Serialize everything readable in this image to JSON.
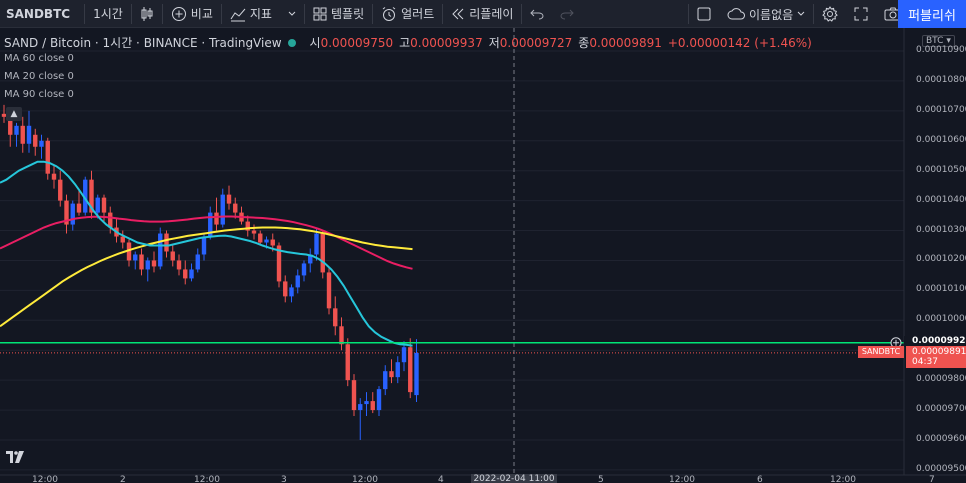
{
  "toolbar": {
    "symbol": "SANDBTC",
    "interval": "1시간",
    "compare": "비교",
    "indicators": "지표",
    "templates": "템플릿",
    "alerts": "얼러트",
    "replay": "리플레이",
    "layout_name": "이름없음",
    "publish": "퍼블리쉬"
  },
  "legend": {
    "title": "SAND / Bitcoin · 1시간 · BINANCE · TradingView",
    "open_label": "시",
    "open": "0.00009750",
    "high_label": "고",
    "high": "0.00009937",
    "low_label": "저",
    "low": "0.00009727",
    "close_label": "종",
    "close": "0.00009891",
    "change": "+0.00000142 (+1.46%)",
    "ma": [
      "MA 60 close 0",
      "MA 20 close 0",
      "MA 90 close 0"
    ]
  },
  "price_scale": {
    "currency": "BTC",
    "ticks": [
      "0.00010900",
      "0.00010800",
      "0.00010700",
      "0.00010600",
      "0.00010500",
      "0.00010400",
      "0.00010300",
      "0.00010200",
      "0.00010100",
      "0.00010000",
      "0.00009900",
      "0.00009800",
      "0.00009700",
      "0.00009600",
      "0.00009500"
    ],
    "horizontal_line_price": "0.00009925",
    "last_price": "0.00009891",
    "last_symbol": "SANDBTC",
    "countdown": "04:37"
  },
  "time_axis": {
    "labels": [
      "12:00",
      "2",
      "12:00",
      "3",
      "12:00",
      "4",
      "5",
      "12:00",
      "6",
      "12:00",
      "7"
    ],
    "cursor_label": "2022-02-04  11:00"
  },
  "colors": {
    "background": "#131722",
    "up": "#2962ff",
    "down": "#ef5350",
    "ma60": "#e91e63",
    "ma20": "#26c6da",
    "ma90": "#ffeb3b",
    "hline": "#00e676",
    "accent": "#2962ff"
  },
  "chart_data": {
    "type": "candlestick",
    "x_unit": "hour",
    "candles_ohlc": [
      [
        0.0001069,
        0.0001072,
        0.0001066,
        0.0001068
      ],
      [
        0.0001068,
        0.000107,
        0.0001058,
        0.0001062
      ],
      [
        0.0001062,
        0.0001066,
        0.0001058,
        0.0001065
      ],
      [
        0.0001065,
        0.0001068,
        0.0001056,
        0.0001059
      ],
      [
        0.0001059,
        0.000107,
        0.0001056,
        0.0001065
      ],
      [
        0.0001062,
        0.0001064,
        0.0001055,
        0.0001058
      ],
      [
        0.0001058,
        0.0001062,
        0.0001054,
        0.000106
      ],
      [
        0.000106,
        0.0001061,
        0.0001047,
        0.0001049
      ],
      [
        0.0001049,
        0.0001052,
        0.0001044,
        0.0001047
      ],
      [
        0.0001047,
        0.000105,
        0.0001038,
        0.000104
      ],
      [
        0.000104,
        0.0001042,
        0.0001029,
        0.0001032
      ],
      [
        0.0001032,
        0.000104,
        0.000103,
        0.0001039
      ],
      [
        0.0001039,
        0.0001044,
        0.0001035,
        0.0001036
      ],
      [
        0.0001036,
        0.0001048,
        0.0001035,
        0.0001047
      ],
      [
        0.0001047,
        0.000105,
        0.0001034,
        0.0001036
      ],
      [
        0.0001036,
        0.0001042,
        0.0001034,
        0.0001041
      ],
      [
        0.0001041,
        0.0001042,
        0.0001033,
        0.0001036
      ],
      [
        0.0001036,
        0.0001038,
        0.0001029,
        0.0001031
      ],
      [
        0.0001031,
        0.0001034,
        0.0001026,
        0.0001028
      ],
      [
        0.0001028,
        0.000103,
        0.0001024,
        0.0001026
      ],
      [
        0.0001026,
        0.0001027,
        0.0001018,
        0.000102
      ],
      [
        0.000102,
        0.0001023,
        0.0001017,
        0.0001022
      ],
      [
        0.0001022,
        0.0001024,
        0.0001015,
        0.0001017
      ],
      [
        0.0001017,
        0.0001021,
        0.0001013,
        0.000102
      ],
      [
        0.000102,
        0.0001023,
        0.0001016,
        0.0001018
      ],
      [
        0.0001018,
        0.0001031,
        0.0001017,
        0.0001029
      ],
      [
        0.0001029,
        0.000103,
        0.0001021,
        0.0001023
      ],
      [
        0.0001023,
        0.0001025,
        0.0001018,
        0.000102
      ],
      [
        0.000102,
        0.0001022,
        0.0001015,
        0.0001017
      ],
      [
        0.0001017,
        0.000102,
        0.0001012,
        0.0001014
      ],
      [
        0.0001014,
        0.0001019,
        0.0001013,
        0.0001017
      ],
      [
        0.0001017,
        0.0001024,
        0.0001016,
        0.0001022
      ],
      [
        0.0001022,
        0.0001029,
        0.000102,
        0.0001028
      ],
      [
        0.0001028,
        0.0001038,
        0.0001027,
        0.0001036
      ],
      [
        0.0001036,
        0.0001041,
        0.000103,
        0.0001032
      ],
      [
        0.0001032,
        0.0001044,
        0.0001031,
        0.0001042
      ],
      [
        0.0001042,
        0.0001045,
        0.0001037,
        0.0001039
      ],
      [
        0.0001039,
        0.0001041,
        0.0001034,
        0.0001036
      ],
      [
        0.0001036,
        0.0001038,
        0.0001032,
        0.0001033
      ],
      [
        0.0001033,
        0.0001035,
        0.0001028,
        0.000103
      ],
      [
        0.000103,
        0.0001032,
        0.0001027,
        0.0001029
      ],
      [
        0.0001029,
        0.000103,
        0.0001025,
        0.0001026
      ],
      [
        0.0001026,
        0.0001028,
        0.0001024,
        0.0001027
      ],
      [
        0.0001027,
        0.0001029,
        0.0001023,
        0.0001025
      ],
      [
        0.0001025,
        0.0001026,
        0.0001011,
        0.0001013
      ],
      [
        0.0001013,
        0.0001015,
        0.0001006,
        0.0001008
      ],
      [
        0.0001008,
        0.0001012,
        0.0001006,
        0.0001011
      ],
      [
        0.0001011,
        0.0001017,
        0.0001009,
        0.0001015
      ],
      [
        0.0001015,
        0.000102,
        0.0001013,
        0.0001019
      ],
      [
        0.0001019,
        0.0001024,
        0.0001016,
        0.0001022
      ],
      [
        0.0001022,
        0.0001031,
        0.000102,
        0.0001029
      ],
      [
        0.0001029,
        0.000103,
        0.0001014,
        0.0001016
      ],
      [
        0.0001016,
        0.0001018,
        0.0001002,
        0.0001004
      ],
      [
        0.0001004,
        0.0001008,
        9.95e-05,
        9.98e-05
      ],
      [
        9.98e-05,
        0.0001001,
        9.9e-05,
        9.92e-05
      ],
      [
        9.92e-05,
        9.94e-05,
        9.78e-05,
        9.8e-05
      ],
      [
        9.8e-05,
        9.82e-05,
        9.68e-05,
        9.7e-05
      ],
      [
        9.7e-05,
        9.74e-05,
        9.6e-05,
        9.72e-05
      ],
      [
        9.72e-05,
        9.76e-05,
        9.68e-05,
        9.73e-05
      ],
      [
        9.73e-05,
        9.76e-05,
        9.69e-05,
        9.7e-05
      ],
      [
        9.7e-05,
        9.78e-05,
        9.68e-05,
        9.77e-05
      ],
      [
        9.77e-05,
        9.85e-05,
        9.75e-05,
        9.83e-05
      ],
      [
        9.83e-05,
        9.87e-05,
        9.79e-05,
        9.81e-05
      ],
      [
        9.81e-05,
        9.88e-05,
        9.79e-05,
        9.86e-05
      ],
      [
        9.86e-05,
        9.93e-05,
        9.83e-05,
        9.91e-05
      ],
      [
        9.91e-05,
        9.94e-05,
        9.74e-05,
        9.76e-05
      ],
      [
        9.75e-05,
        9.937e-05,
        9.727e-05,
        9.891e-05
      ]
    ],
    "ma20": [
      0.0001046,
      0.0001047,
      0.00010485,
      0.000105,
      0.0001051,
      0.0001052,
      0.0001053,
      0.0001053,
      0.00010525,
      0.00010515,
      0.000105,
      0.0001048,
      0.00010455,
      0.00010425,
      0.00010395,
      0.00010365,
      0.0001034,
      0.0001032,
      0.00010305,
      0.0001029,
      0.0001028,
      0.0001027,
      0.0001026,
      0.00010255,
      0.0001025,
      0.0001025,
      0.0001025,
      0.0001025,
      0.00010255,
      0.0001026,
      0.00010265,
      0.0001027,
      0.00010275,
      0.00010278,
      0.0001028,
      0.00010282,
      0.00010283,
      0.0001028,
      0.00010275,
      0.0001027,
      0.00010265,
      0.00010258,
      0.0001025,
      0.00010243,
      0.00010237,
      0.00010232,
      0.00010228,
      0.00010225,
      0.00010222,
      0.0001022,
      0.00010215,
      0.00010205,
      0.0001019,
      0.0001017,
      0.00010145,
      0.00010115,
      0.0001008,
      0.00010045,
      0.0001001,
      9.98e-05,
      9.96e-05,
      9.945e-05,
      9.935e-05,
      9.925e-05,
      9.92e-05,
      9.918e-05,
      9.915e-05
    ],
    "ma60": [
      0.0001024,
      0.0001025,
      0.0001026,
      0.0001027,
      0.0001028,
      0.0001029,
      0.000103,
      0.0001031,
      0.00010318,
      0.00010325,
      0.0001033,
      0.00010335,
      0.0001034,
      0.00010343,
      0.00010345,
      0.00010346,
      0.00010346,
      0.00010345,
      0.00010343,
      0.0001034,
      0.00010338,
      0.00010335,
      0.00010333,
      0.00010331,
      0.0001033,
      0.0001033,
      0.0001033,
      0.00010331,
      0.00010333,
      0.00010335,
      0.00010337,
      0.0001034,
      0.00010342,
      0.00010344,
      0.00010345,
      0.00010346,
      0.00010347,
      0.00010347,
      0.00010346,
      0.00010345,
      0.00010344,
      0.00010343,
      0.00010342,
      0.0001034,
      0.00010338,
      0.00010335,
      0.00010332,
      0.00010328,
      0.00010323,
      0.00010318,
      0.00010312,
      0.00010305,
      0.00010297,
      0.00010288,
      0.00010278,
      0.00010268,
      0.00010258,
      0.00010248,
      0.00010238,
      0.00010228,
      0.00010218,
      0.00010208,
      0.00010198,
      0.0001019,
      0.00010183,
      0.00010177,
      0.00010172
    ],
    "ma90": [
      9.98e-05,
      9.995e-05,
      0.0001001,
      0.00010025,
      0.0001004,
      0.00010055,
      0.0001007,
      0.00010085,
      0.000101,
      0.00010115,
      0.0001013,
      0.00010143,
      0.00010155,
      0.00010167,
      0.00010178,
      0.00010188,
      0.00010198,
      0.00010207,
      0.00010215,
      0.00010223,
      0.0001023,
      0.00010237,
      0.00010243,
      0.00010249,
      0.00010255,
      0.0001026,
      0.00010265,
      0.0001027,
      0.00010274,
      0.00010278,
      0.00010282,
      0.00010285,
      0.00010288,
      0.00010291,
      0.00010294,
      0.00010297,
      0.000103,
      0.00010302,
      0.00010304,
      0.00010306,
      0.00010308,
      0.00010309,
      0.0001031,
      0.0001031,
      0.0001031,
      0.00010309,
      0.00010308,
      0.00010306,
      0.00010304,
      0.00010301,
      0.00010298,
      0.00010294,
      0.0001029,
      0.00010285,
      0.0001028,
      0.00010275,
      0.0001027,
      0.00010265,
      0.0001026,
      0.00010256,
      0.00010252,
      0.00010249,
      0.00010246,
      0.00010244,
      0.00010242,
      0.0001024,
      0.00010238
    ],
    "ylim": [
      9.5e-05,
      0.0001095
    ],
    "hline": 9.925e-05,
    "last": 9.891e-05
  }
}
